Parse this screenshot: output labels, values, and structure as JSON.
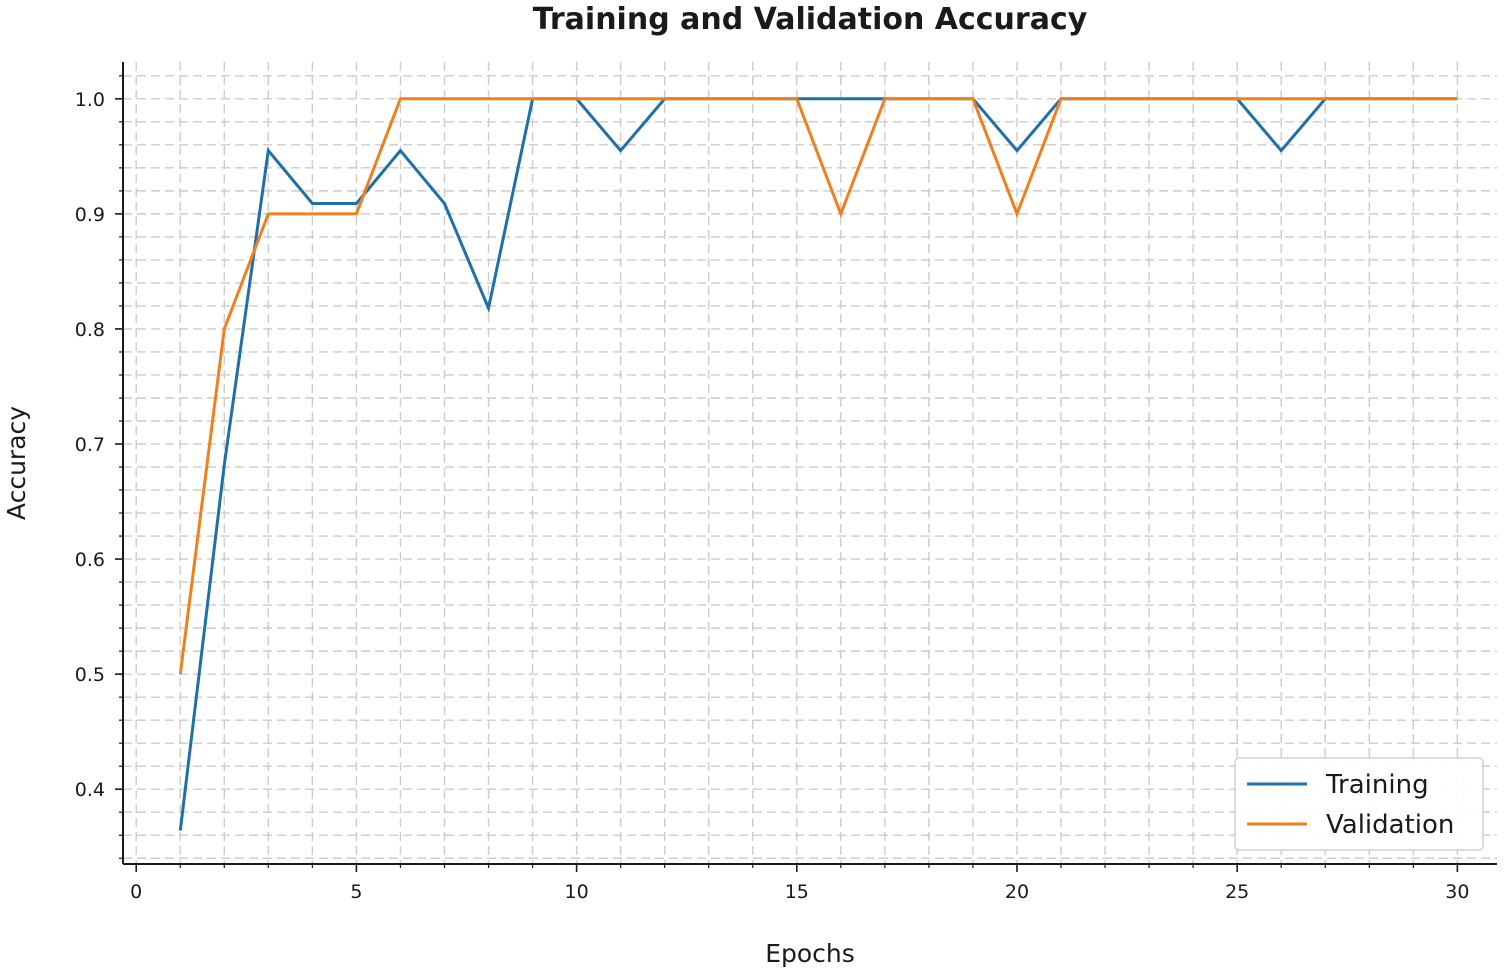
{
  "chart_data": {
    "type": "line",
    "title": "Training and Validation Accuracy",
    "xlabel": "Epochs",
    "ylabel": "Accuracy",
    "xlim": [
      -0.3,
      30.9
    ],
    "ylim": [
      0.335,
      1.032
    ],
    "x_ticks": [
      0,
      5,
      10,
      15,
      20,
      25,
      30
    ],
    "y_ticks": [
      0.4,
      0.5,
      0.6,
      0.7,
      0.8,
      0.9,
      1.0
    ],
    "x_tick_labels": [
      "0",
      "5",
      "10",
      "15",
      "20",
      "25",
      "30"
    ],
    "y_tick_labels": [
      "0.4",
      "0.5",
      "0.6",
      "0.7",
      "0.8",
      "0.9",
      "1.0"
    ],
    "x_minor_step": 1,
    "y_minor_step": 0.02,
    "grid": true,
    "legend_position": "lower-right",
    "x": [
      1,
      2,
      3,
      4,
      5,
      6,
      7,
      8,
      9,
      10,
      11,
      12,
      13,
      14,
      15,
      16,
      17,
      18,
      19,
      20,
      21,
      22,
      23,
      24,
      25,
      26,
      27,
      28,
      29,
      30
    ],
    "series": [
      {
        "name": "Training",
        "color": "#1f6fa8",
        "values": [
          0.364,
          0.682,
          0.955,
          0.909,
          0.909,
          0.955,
          0.909,
          0.818,
          1.0,
          1.0,
          0.955,
          1.0,
          1.0,
          1.0,
          1.0,
          1.0,
          1.0,
          1.0,
          1.0,
          0.955,
          1.0,
          1.0,
          1.0,
          1.0,
          1.0,
          0.955,
          1.0,
          1.0,
          1.0,
          1.0
        ]
      },
      {
        "name": "Validation",
        "color": "#f07f1e",
        "values": [
          0.5,
          0.8,
          0.9,
          0.9,
          0.9,
          1.0,
          1.0,
          1.0,
          1.0,
          1.0,
          1.0,
          1.0,
          1.0,
          1.0,
          1.0,
          0.9,
          1.0,
          1.0,
          1.0,
          0.9,
          1.0,
          1.0,
          1.0,
          1.0,
          1.0,
          1.0,
          1.0,
          1.0,
          1.0,
          1.0
        ]
      }
    ]
  },
  "colors": {
    "training": "#1f6fa8",
    "validation": "#f07f1e",
    "grid": "#cccccc",
    "axis": "#1a1a1a",
    "legend_border": "#d0d0d0"
  }
}
